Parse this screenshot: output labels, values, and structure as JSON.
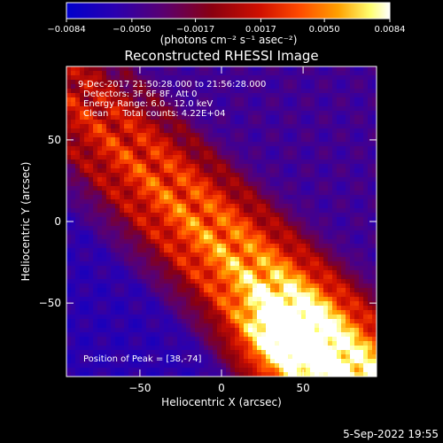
{
  "chart_data": {
    "type": "heatmap",
    "title": "Reconstructed RHESSI Image",
    "xlabel": "Heliocentric X (arcsec)",
    "ylabel": "Heliocentric Y (arcsec)",
    "xlim": [
      -95,
      95
    ],
    "ylim": [
      -95,
      95
    ],
    "xticks": [
      -50,
      0,
      50
    ],
    "yticks": [
      -50,
      0,
      50
    ],
    "xtick_labels": [
      "−50",
      "0",
      "50"
    ],
    "ytick_labels": [
      "−50",
      "0",
      "50"
    ],
    "colorbar": {
      "range": [
        -0.0084,
        0.0084
      ],
      "ticks": [
        -0.0084,
        -0.005,
        -0.0017,
        0.0017,
        0.005,
        0.0084
      ],
      "tick_labels": [
        "−0.0084",
        "−0.0050",
        "−0.0017",
        "0.0017",
        "0.0050",
        "0.0084"
      ],
      "unit_label": "(photons cm⁻² s⁻¹ asec⁻²)",
      "colors": [
        "#0000cc",
        "#3300aa",
        "#550077",
        "#880022",
        "#cc1100",
        "#ff5500",
        "#ffaa00",
        "#ffff88",
        "#ffffff"
      ]
    },
    "annotations": {
      "time_range": "9-Dec-2017 21:50:28.000 to 21:56:28.000",
      "detectors": "Detectors: 3F 6F 8F, Att 0",
      "energy": "Energy Range: 6.0 - 12.0 keV",
      "clean": "Clean     Total counts: 4.22E+04",
      "peak": "Position of Peak = [38,-74]"
    },
    "peak_position": [
      38,
      -74
    ],
    "band_direction": "diagonal from upper-left to lower-right",
    "min_value": -0.0084,
    "max_value": 0.0084
  },
  "footer": {
    "timestamp": "5-Sep-2022 19:55"
  }
}
